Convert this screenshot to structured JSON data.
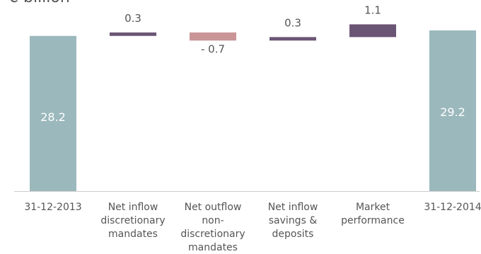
{
  "chart_data": {
    "type": "waterfall",
    "ylabel": "€ billion",
    "categories": [
      "31-12-2013",
      "Net inflow discretionary mandates",
      "Net outflow non-discretionary mandates",
      "Net inflow savings & deposits",
      "Market performance",
      "31-12-2014"
    ],
    "category_lines": [
      [
        "31-12-2013"
      ],
      [
        "Net inflow",
        "discretionary",
        "mandates"
      ],
      [
        "Net outflow",
        "non-",
        "discretionary",
        "mandates"
      ],
      [
        "Net inflow",
        "savings &",
        "deposits"
      ],
      [
        "Market",
        "performance"
      ],
      [
        "31-12-2014"
      ]
    ],
    "values": [
      28.2,
      0.3,
      -0.7,
      0.3,
      1.1,
      29.2
    ],
    "value_labels": [
      "28.2",
      "0.3",
      "- 0.7",
      "0.3",
      "1.1",
      "29.2"
    ],
    "kinds": [
      "total",
      "delta",
      "delta",
      "delta",
      "delta",
      "total"
    ],
    "colors": {
      "total": "#9bb8bc",
      "increase": "#6b5574",
      "decrease": "#c99596",
      "axis": "#cccccc",
      "text": "#555555",
      "total_text": "#ffffff"
    }
  }
}
